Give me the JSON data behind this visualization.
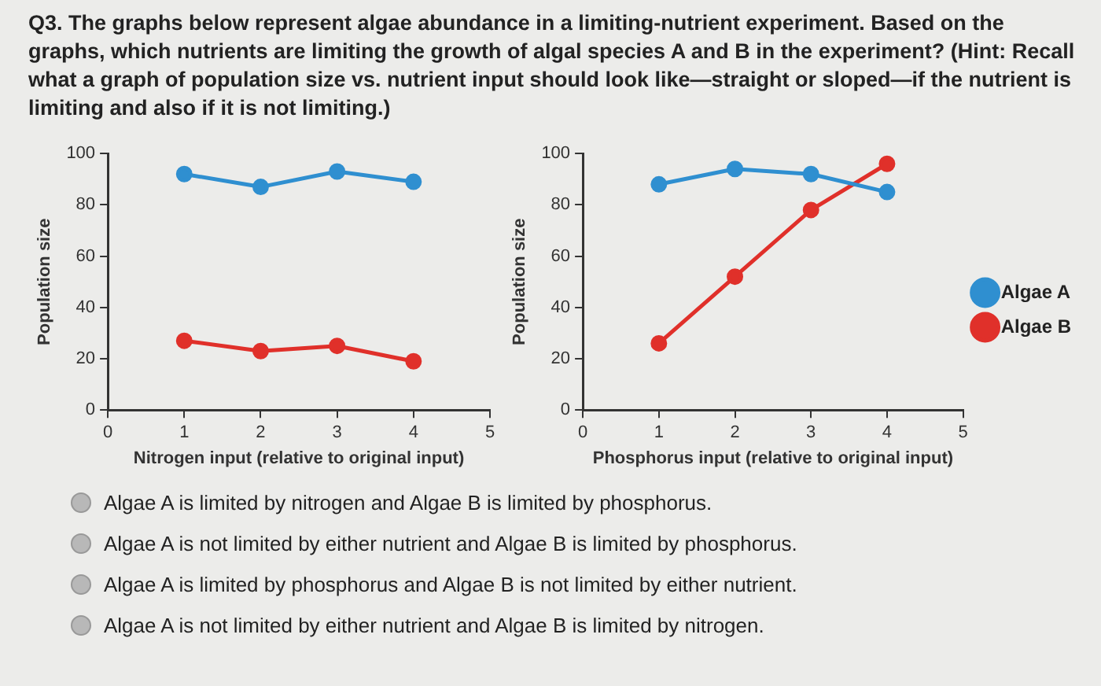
{
  "chart_data": [
    {
      "type": "other",
      "title": "Q3. The graphs below represent algae abundance in a limiting-nutrient experiment. Based on the graphs, which nutrients are limiting the growth of algal species A and B in the experiment? (Hint: Recall what a graph of population size vs. nutrient input should look like—straight or sloped—if the nutrient is limiting and also if it is not limiting.)"
    },
    {
      "type": "line",
      "x": [
        1,
        2,
        3,
        4
      ],
      "xlabel": "Nitrogen input (relative to original input)",
      "ylabel": "Population size",
      "xlim": [
        0,
        5
      ],
      "xticks": [
        0,
        1,
        2,
        3,
        4,
        5
      ],
      "ylim": [
        0,
        100
      ],
      "yticks": [
        0,
        20,
        40,
        60,
        80,
        100
      ],
      "grid": false,
      "marker": "circle",
      "series": [
        {
          "color": "#2f8fd0",
          "values": [
            92,
            87,
            93,
            89
          ]
        },
        {
          "color": "#e0302a",
          "values": [
            27,
            23,
            25,
            19
          ]
        }
      ]
    },
    {
      "type": "line",
      "x": [
        1,
        2,
        3,
        4
      ],
      "xlabel": "Phosphorus input (relative to original input)",
      "ylabel": "Population size",
      "xlim": [
        0,
        5
      ],
      "xticks": [
        0,
        1,
        2,
        3,
        4,
        5
      ],
      "ylim": [
        0,
        100
      ],
      "yticks": [
        0,
        20,
        40,
        60,
        80,
        100
      ],
      "grid": false,
      "marker": "circle",
      "legend": "right",
      "series": [
        {
          "name": "Algae A",
          "color": "#2f8fd0",
          "values": [
            88,
            94,
            92,
            85
          ]
        },
        {
          "name": "Algae B",
          "color": "#e0302a",
          "values": [
            26,
            52,
            78,
            96
          ]
        }
      ]
    },
    {
      "type": "other",
      "annotations": [
        "Algae A is limited by nitrogen and Algae B is limited by phosphorus.",
        "Algae A is not limited by either nutrient and Algae B is limited by phosphorus.",
        "Algae A is limited by phosphorus and Algae B is not limited by either nutrient.",
        "Algae A is not limited by either nutrient and Algae B is limited by nitrogen."
      ]
    }
  ]
}
